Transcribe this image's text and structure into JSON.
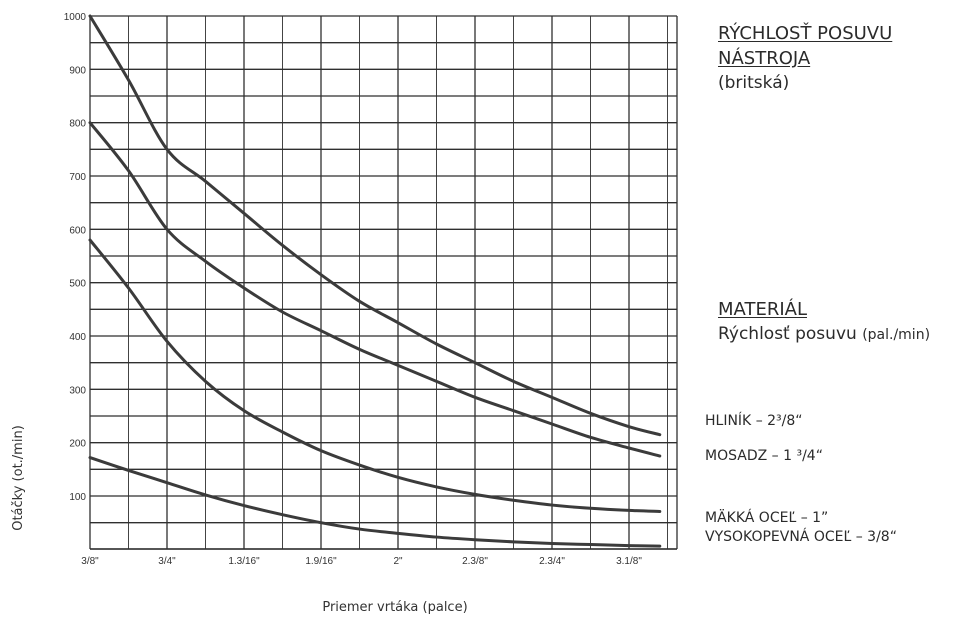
{
  "chart_data": {
    "type": "line",
    "xlabel": "Priemer vrtáka (palce)",
    "ylabel": "Otáčky (ot./min)",
    "categories": [
      "3/8\"",
      "3/4\"",
      "1.3/16\"",
      "1.9/16\"",
      "2\"",
      "2.3/8\"",
      "2.3/4\"",
      "3.1/8\""
    ],
    "yticks": [
      "1000",
      "900",
      "800",
      "700",
      "600",
      "500",
      "400",
      "300",
      "200",
      "100"
    ],
    "ylim": [
      0,
      1000
    ],
    "grid": true,
    "series": [
      {
        "name": "HLINÍK – 2³/8“",
        "x": [
          0,
          0.5,
          1,
          1.5,
          2,
          2.5,
          3,
          3.5,
          4,
          4.5,
          5,
          5.5,
          6,
          6.5,
          7,
          7.4
        ],
        "y": [
          1000,
          880,
          750,
          690,
          630,
          570,
          515,
          465,
          425,
          385,
          350,
          315,
          285,
          255,
          230,
          215
        ]
      },
      {
        "name": "MOSADZ – 1 ³/4“",
        "x": [
          0,
          0.5,
          1,
          1.5,
          2,
          2.5,
          3,
          3.5,
          4,
          4.5,
          5,
          5.5,
          6,
          6.5,
          7,
          7.4
        ],
        "y": [
          800,
          710,
          600,
          540,
          490,
          445,
          410,
          375,
          345,
          315,
          285,
          260,
          235,
          210,
          190,
          175
        ]
      },
      {
        "name": "MÄKKÁ OCEĽ – 1”",
        "x": [
          0,
          0.5,
          1,
          1.5,
          2,
          2.5,
          3,
          3.5,
          4,
          4.5,
          5,
          5.5,
          6,
          6.5,
          7,
          7.4
        ],
        "y": [
          580,
          490,
          390,
          315,
          260,
          220,
          185,
          158,
          135,
          117,
          103,
          92,
          83,
          77,
          73,
          71
        ]
      },
      {
        "name": "VYSOKOPEVNÁ OCEĽ – 3/8“",
        "x": [
          0,
          0.5,
          1,
          1.5,
          2,
          2.5,
          3,
          3.5,
          4,
          4.5,
          5,
          5.5,
          6,
          6.5,
          7,
          7.4
        ],
        "y": [
          172,
          148,
          125,
          102,
          82,
          65,
          50,
          38,
          30,
          23,
          18,
          14,
          11,
          9,
          7,
          6
        ]
      }
    ]
  },
  "side_text": {
    "title_line1": "RÝCHLOSŤ POSUVU",
    "title_line2": "NÁSTROJA",
    "title_line3": "(britská)",
    "material_heading": "MATERIÁL",
    "feed_label": "Rýchlosť posuvu",
    "feed_unit": "(pal./min)"
  },
  "colors": {
    "line": "#3b3b3b",
    "grid": "#2f2f2f",
    "text": "#2b2b2b"
  }
}
